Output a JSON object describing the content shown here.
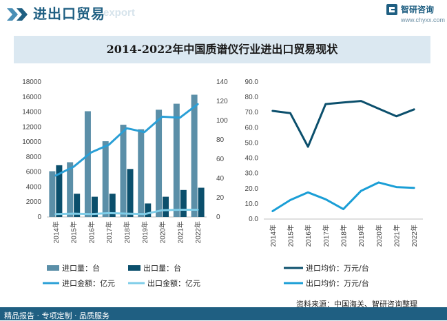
{
  "header": {
    "title": "进出口贸易",
    "ghost_text": "export"
  },
  "logo": {
    "name": "智研咨询",
    "url": "www.chyxx.com"
  },
  "chart_title": "2014-2022年中国质谱仪行业进出口贸易现状",
  "footer": {
    "left": "精品报告 · 专项定制 · 品质服务",
    "source": "资料来源：中国海关、智研咨询整理"
  },
  "colors": {
    "import_qty": "#5b8fa8",
    "export_qty": "#0b4f6c",
    "import_amt": "#2a9fd6",
    "export_amt": "#7fcde8",
    "dark_line": "#0b4f6c",
    "light_line": "#1a9ed6"
  },
  "chart_data": [
    {
      "type": "bar",
      "categories": [
        "2014年",
        "2015年",
        "2016年",
        "2017年",
        "2018年",
        "2019年",
        "2020年",
        "2021年",
        "2022年"
      ],
      "left_ylim": [
        0,
        18000
      ],
      "left_ticks": [
        "0",
        "2000",
        "4000",
        "6000",
        "8000",
        "10000",
        "12000",
        "14000",
        "16000",
        "18000"
      ],
      "right_ylim": [
        0,
        140
      ],
      "right_ticks": [
        "0",
        "20",
        "40",
        "60",
        "80",
        "100",
        "120",
        "140"
      ],
      "series": [
        {
          "name": "进口量：台",
          "type": "bar",
          "axis": "left",
          "values": [
            6100,
            7300,
            14100,
            10100,
            12300,
            11700,
            14300,
            15100,
            16300
          ]
        },
        {
          "name": "出口量：台",
          "type": "bar",
          "axis": "left",
          "values": [
            6900,
            3100,
            2700,
            3100,
            6400,
            1800,
            2700,
            3600,
            3900
          ]
        },
        {
          "name": "进口金额：亿元",
          "type": "line",
          "axis": "right",
          "values": [
            43,
            52,
            67,
            75,
            92,
            88,
            104,
            103,
            117
          ]
        },
        {
          "name": "出口金额：亿元",
          "type": "line",
          "axis": "right",
          "values": [
            3,
            3.5,
            3,
            4,
            3.5,
            3,
            7,
            7.5,
            7.5
          ]
        }
      ]
    },
    {
      "type": "line",
      "categories": [
        "2014年",
        "2015年",
        "2016年",
        "2017年",
        "2018年",
        "2019年",
        "2020年",
        "2021年",
        "2022年"
      ],
      "ylim": [
        0,
        90
      ],
      "ticks": [
        "0.0",
        "10.0",
        "20.0",
        "30.0",
        "40.0",
        "50.0",
        "60.0",
        "70.0",
        "80.0",
        "90.0"
      ],
      "series": [
        {
          "name": "进口均价：万元/台",
          "values": [
            71,
            69.5,
            47.5,
            75.5,
            76.5,
            77.5,
            72.5,
            67.5,
            72
          ]
        },
        {
          "name": "出口均价：万元/台",
          "values": [
            5.2,
            12.5,
            17.5,
            13,
            6.5,
            18.5,
            24,
            21,
            20.5
          ]
        }
      ]
    }
  ]
}
